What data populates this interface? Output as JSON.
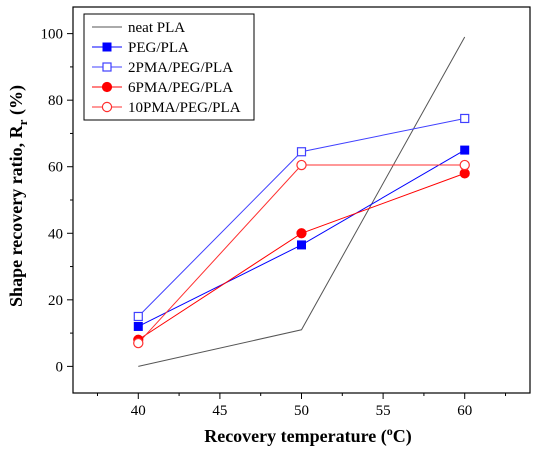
{
  "chart_data": {
    "type": "line",
    "xlabel_main": "Recovery temperature (",
    "xlabel_sup": "o",
    "xlabel_tail": "C)",
    "ylabel_main": "Shape recovery ratio, R",
    "ylabel_sub": "r",
    "ylabel_tail": " (%)",
    "xlim": [
      36,
      64
    ],
    "ylim": [
      -8,
      108
    ],
    "x_ticks": [
      40,
      45,
      50,
      55,
      60
    ],
    "y_ticks": [
      0,
      20,
      40,
      60,
      80,
      100
    ],
    "grid": false,
    "legend_position": "top-left",
    "series": [
      {
        "name": "neat PLA",
        "x": [
          40,
          50,
          60
        ],
        "y": [
          0,
          11,
          99
        ],
        "color": "#555555",
        "marker": "none"
      },
      {
        "name": "PEG/PLA",
        "x": [
          40,
          50,
          60
        ],
        "y": [
          12,
          36.5,
          65
        ],
        "color": "#0000ff",
        "marker": "square-filled"
      },
      {
        "name": "2PMA/PEG/PLA",
        "x": [
          40,
          50,
          60
        ],
        "y": [
          15,
          64.5,
          74.5
        ],
        "color": "#4040ff",
        "marker": "square-open"
      },
      {
        "name": "6PMA/PEG/PLA",
        "x": [
          40,
          50,
          60
        ],
        "y": [
          8,
          40,
          58
        ],
        "color": "#ff0000",
        "marker": "circle-filled"
      },
      {
        "name": "10PMA/PEG/PLA",
        "x": [
          40,
          50,
          60
        ],
        "y": [
          7,
          60.5,
          60.5
        ],
        "color": "#ff3030",
        "marker": "circle-open"
      }
    ]
  }
}
